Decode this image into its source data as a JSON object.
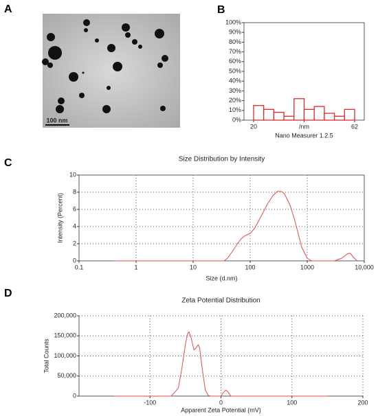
{
  "figure": {
    "panel_labels": [
      "A",
      "B",
      "C",
      "D"
    ],
    "scale_bar": "100 nm"
  },
  "chart_data": [
    {
      "type": "histogram",
      "xlabel": "Nano Measurer 1.2.5",
      "bins": [
        20,
        24.2,
        28.4,
        32.6,
        36.8,
        41,
        45.2,
        49.4,
        53.6,
        57.8,
        62
      ],
      "values": [
        15,
        11,
        8,
        4,
        22,
        11,
        14,
        7,
        4,
        11
      ],
      "color": "#e0282a",
      "xlim": [
        16,
        66
      ],
      "xticks": [
        20,
        {
          "value": 41,
          "label": "/nm"
        },
        62
      ],
      "ylim": [
        0,
        100
      ],
      "yticks": [
        {
          "value": 0,
          "label": "0%"
        },
        {
          "value": 10,
          "label": "10%"
        },
        {
          "value": 20,
          "label": "20%"
        },
        {
          "value": 30,
          "label": "30%"
        },
        {
          "value": 40,
          "label": "40%"
        },
        {
          "value": 50,
          "label": "50%"
        },
        {
          "value": 60,
          "label": "60%"
        },
        {
          "value": 70,
          "label": "70%"
        },
        {
          "value": 80,
          "label": "80%"
        },
        {
          "value": 90,
          "label": "90%"
        },
        {
          "value": 100,
          "label": "100%"
        }
      ],
      "grid": false
    },
    {
      "type": "line",
      "title": "Size Distribution by Intensity",
      "xlabel": "Size (d.nm)",
      "ylabel": "Intensity (Percent)",
      "x": [
        0.4,
        35,
        40,
        50,
        60,
        70,
        80,
        100,
        120,
        150,
        200,
        250,
        300,
        350,
        400,
        500,
        600,
        700,
        800,
        1000,
        1200,
        3000,
        4000,
        5000,
        5600,
        6500,
        7500
      ],
      "values": [
        0,
        0,
        0.3,
        1.2,
        2.0,
        2.6,
        2.9,
        3.2,
        3.8,
        5.0,
        6.6,
        7.6,
        8.1,
        8.1,
        7.8,
        6.5,
        4.8,
        3.1,
        1.6,
        0.3,
        0,
        0,
        0.3,
        0.8,
        0.9,
        0.4,
        0
      ],
      "color": "#e8474a",
      "xlog": true,
      "xlim": [
        0.1,
        10000
      ],
      "xticks": [
        0.1,
        1,
        10,
        100,
        1000,
        {
          "value": 10000,
          "label": "10,000"
        }
      ],
      "ylim": [
        0,
        10
      ],
      "yticks": [
        0,
        2,
        4,
        6,
        8,
        10
      ],
      "grid": true
    },
    {
      "type": "line",
      "title": "Zeta Potential Distribution",
      "xlabel": "Apparent Zeta Potential (mV)",
      "ylabel": "Total Counts",
      "x": [
        -150,
        -70,
        -60,
        -55,
        -50,
        -47,
        -45,
        -42,
        -38,
        -35,
        -32,
        -30,
        -28,
        -25,
        -22,
        -18,
        -15,
        0,
        3,
        7,
        10,
        14,
        150
      ],
      "values": [
        0,
        0,
        20000,
        70000,
        130000,
        155000,
        160000,
        145000,
        115000,
        120000,
        128000,
        120000,
        90000,
        50000,
        15000,
        2000,
        0,
        0,
        8000,
        15000,
        10000,
        0,
        0
      ],
      "color": "#e8474a",
      "xlog": false,
      "xlim": [
        -200,
        200
      ],
      "xticks": [
        -100,
        0,
        100,
        200
      ],
      "ylim": [
        0,
        200000
      ],
      "yticks": [
        0,
        {
          "value": 50000,
          "label": "50,000"
        },
        {
          "value": 100000,
          "label": "100,000"
        },
        {
          "value": 150000,
          "label": "150,000"
        },
        {
          "value": 200000,
          "label": "200,000"
        }
      ],
      "grid": true
    }
  ]
}
